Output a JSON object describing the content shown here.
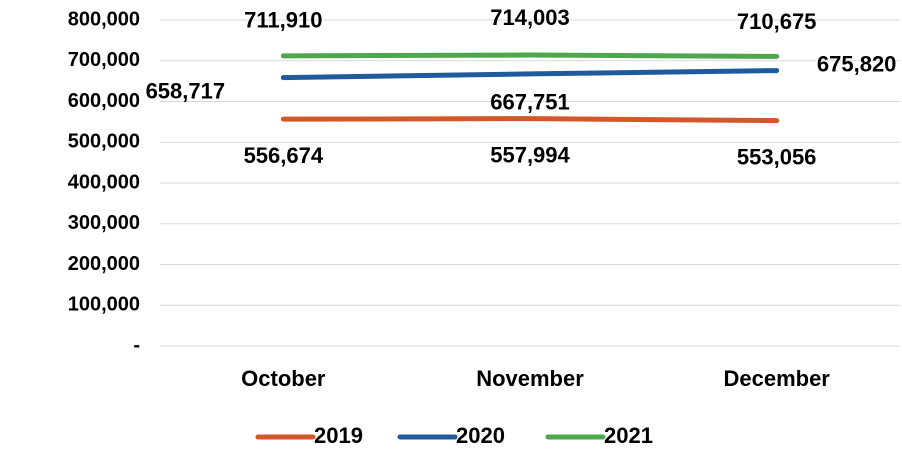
{
  "chart_data": {
    "type": "line",
    "categories": [
      "October",
      "November",
      "December"
    ],
    "series": [
      {
        "name": "2019",
        "color": "#d2572b",
        "values": [
          556674,
          557994,
          553056
        ],
        "value_labels": [
          "556,674",
          "557,994",
          "553,056"
        ]
      },
      {
        "name": "2020",
        "color": "#1f5a9c",
        "values": [
          658717,
          667751,
          675820
        ],
        "value_labels": [
          "658,717",
          "667,751",
          "675,820"
        ]
      },
      {
        "name": "2021",
        "color": "#4ea64d",
        "values": [
          711910,
          714003,
          710675
        ],
        "value_labels": [
          "711,910",
          "714,003",
          "710,675"
        ]
      }
    ],
    "ylim": [
      0,
      800000
    ],
    "yticks": [
      {
        "value": 0,
        "label": "-"
      },
      {
        "value": 100000,
        "label": "100,000"
      },
      {
        "value": 200000,
        "label": "200,000"
      },
      {
        "value": 300000,
        "label": "300,000"
      },
      {
        "value": 400000,
        "label": "400,000"
      },
      {
        "value": 500000,
        "label": "500,000"
      },
      {
        "value": 600000,
        "label": "600,000"
      },
      {
        "value": 700000,
        "label": "700,000"
      },
      {
        "value": 800000,
        "label": "800,000"
      }
    ],
    "grid": true,
    "legend": "bottom"
  }
}
